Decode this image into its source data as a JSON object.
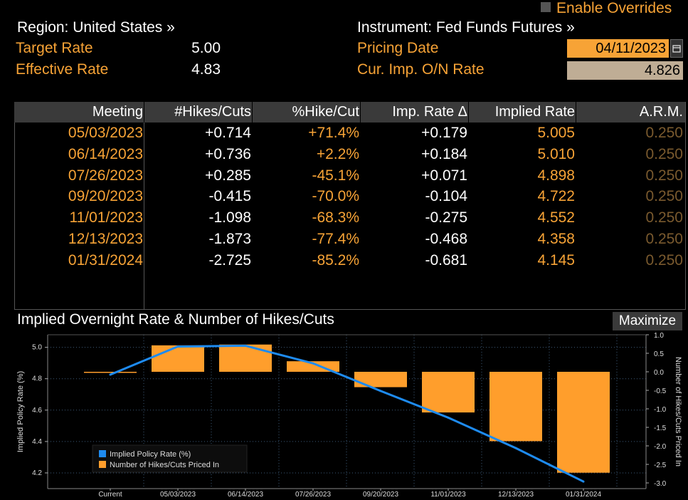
{
  "overrides": {
    "label": "Enable Overrides",
    "checked": false
  },
  "region": {
    "label": "Region: United States »"
  },
  "instrument": {
    "label": "Instrument: Fed Funds Futures »"
  },
  "target_rate": {
    "label": "Target Rate",
    "value": "5.00"
  },
  "effective_rate": {
    "label": "Effective Rate",
    "value": "4.83"
  },
  "pricing_date": {
    "label": "Pricing Date",
    "value": "04/11/2023"
  },
  "cur_imp_rate": {
    "label": "Cur. Imp. O/N Rate",
    "value": "4.826"
  },
  "table": {
    "columns": [
      "Meeting",
      "#Hikes/Cuts",
      "%Hike/Cut",
      "Imp. Rate Δ",
      "Implied Rate",
      "A.R.M."
    ],
    "rows": [
      [
        "05/03/2023",
        "+0.714",
        "+71.4%",
        "+0.179",
        "5.005",
        "0.250"
      ],
      [
        "06/14/2023",
        "+0.736",
        "+2.2%",
        "+0.184",
        "5.010",
        "0.250"
      ],
      [
        "07/26/2023",
        "+0.285",
        "-45.1%",
        "+0.071",
        "4.898",
        "0.250"
      ],
      [
        "09/20/2023",
        "-0.415",
        "-70.0%",
        "-0.104",
        "4.722",
        "0.250"
      ],
      [
        "11/01/2023",
        "-1.098",
        "-68.3%",
        "-0.275",
        "4.552",
        "0.250"
      ],
      [
        "12/13/2023",
        "-1.873",
        "-77.4%",
        "-0.468",
        "4.358",
        "0.250"
      ],
      [
        "01/31/2024",
        "-2.725",
        "-85.2%",
        "-0.681",
        "4.145",
        "0.250"
      ]
    ]
  },
  "chart_title": "Implied Overnight Rate & Number of Hikes/Cuts",
  "maximize_label": "Maximize",
  "colors": {
    "orange": "#f7a336",
    "bar": "#ff9e2c",
    "line": "#1e8bf0",
    "header_bg": "#3a3a3a"
  },
  "chart_data": {
    "type": "bar",
    "title": "Implied Overnight Rate & Number of Hikes/Cuts",
    "categories": [
      "Current",
      "05/03/2023",
      "06/14/2023",
      "07/26/2023",
      "09/20/2023",
      "11/01/2023",
      "12/13/2023",
      "01/31/2024"
    ],
    "series": [
      {
        "name": "Implied Policy Rate (%)",
        "type": "line",
        "axis": "left",
        "values": [
          4.826,
          5.005,
          5.01,
          4.898,
          4.722,
          4.552,
          4.358,
          4.145
        ]
      },
      {
        "name": "Number of Hikes/Cuts Priced In",
        "type": "bar",
        "axis": "right",
        "values": [
          0.0,
          0.714,
          0.736,
          0.285,
          -0.415,
          -1.098,
          -1.873,
          -2.725
        ]
      }
    ],
    "ylabel": "Implied Policy Rate (%)",
    "ylabel_right": "Number of Hikes/Cuts Priced In",
    "yticks_left": [
      "4.2",
      "4.4",
      "4.6",
      "4.8",
      "5.0"
    ],
    "ylim_left": [
      4.1,
      5.08
    ],
    "yticks_right": [
      "1.0",
      "0.5",
      "0.0",
      "-0.5",
      "-1.0",
      "-1.5",
      "-2.0",
      "-2.5",
      "-3.0"
    ],
    "ylim_right": [
      -3.0,
      1.0
    ],
    "legend": [
      "Implied Policy Rate (%)",
      "Number of Hikes/Cuts Priced In"
    ]
  }
}
